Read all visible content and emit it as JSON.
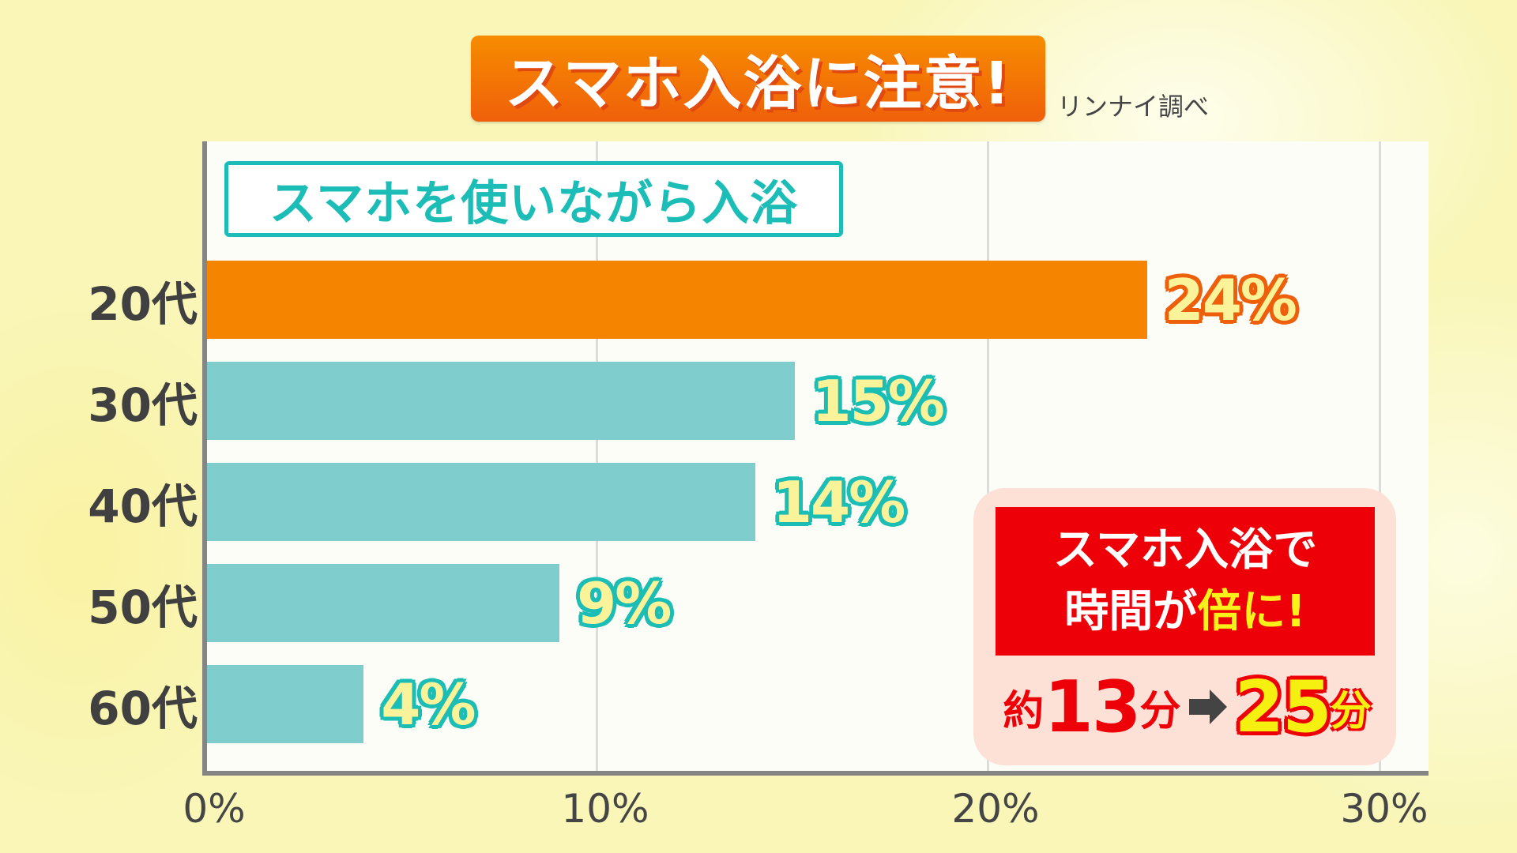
{
  "title": "スマホ入浴に注意!",
  "source": "リンナイ調べ",
  "subtitle": "スマホを使いながら入浴",
  "colors": {
    "background": "#f9f6b8",
    "title_orange": "#f37a05",
    "highlight_bar": "#f58500",
    "bar": "#7fcdcd",
    "teal_accent": "#1cbdb6",
    "callout_red": "#ee0008",
    "callout_bg": "#fde0d6",
    "value_yellow": "#fbf39a"
  },
  "chart_data": {
    "type": "bar",
    "orientation": "horizontal",
    "title": "スマホ入浴に注意!",
    "subtitle": "スマホを使いながら入浴",
    "source": "リンナイ調べ",
    "categories": [
      "20代",
      "30代",
      "40代",
      "50代",
      "60代"
    ],
    "values": [
      24,
      15,
      14,
      9,
      4
    ],
    "value_labels": [
      "24%",
      "15%",
      "14%",
      "9%",
      "4%"
    ],
    "xlabel": "",
    "ylabel": "",
    "xlim": [
      0,
      30
    ],
    "xticks": [
      "0%",
      "10%",
      "20%",
      "30%"
    ],
    "grid": true,
    "highlight_index": 0,
    "annotation": {
      "headline_line1": "スマホ入浴で",
      "headline_line2_a": "時間が",
      "headline_line2_b": "倍に!",
      "before_prefix": "約",
      "before_value": "13",
      "before_unit": "分",
      "after_value": "25",
      "after_unit": "分"
    }
  }
}
